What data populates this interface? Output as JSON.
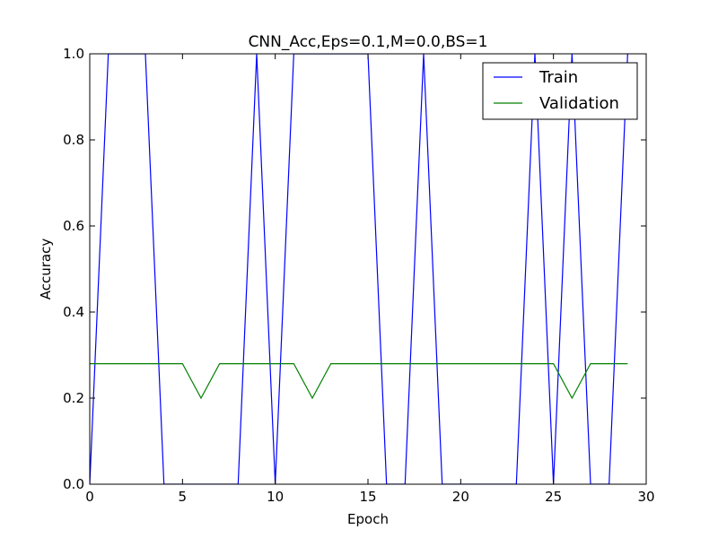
{
  "chart_data": {
    "type": "line",
    "title": "CNN_Acc,Eps=0.1,M=0.0,BS=1",
    "xlabel": "Epoch",
    "ylabel": "Accuracy",
    "xlim": [
      0,
      30
    ],
    "ylim": [
      0.0,
      1.0
    ],
    "xticks": [
      0,
      5,
      10,
      15,
      20,
      25,
      30
    ],
    "yticks": [
      0.0,
      0.2,
      0.4,
      0.6,
      0.8,
      1.0
    ],
    "xtick_labels": [
      "0",
      "5",
      "10",
      "15",
      "20",
      "25",
      "30"
    ],
    "ytick_labels": [
      "0.0",
      "0.2",
      "0.4",
      "0.6",
      "0.8",
      "1.0"
    ],
    "grid": false,
    "legend_position": "top-right",
    "x": [
      0,
      1,
      2,
      3,
      4,
      5,
      6,
      7,
      8,
      9,
      10,
      11,
      12,
      13,
      14,
      15,
      16,
      17,
      18,
      19,
      20,
      21,
      22,
      23,
      24,
      25,
      26,
      27,
      28,
      29
    ],
    "series": [
      {
        "name": "Train",
        "color": "#0000ff",
        "values": [
          0,
          1,
          1,
          1,
          0,
          0,
          0,
          0,
          0,
          1,
          0,
          1,
          1,
          1,
          1,
          1,
          0,
          0,
          1,
          0,
          0,
          0,
          0,
          0,
          1,
          0,
          1,
          0,
          0,
          1
        ]
      },
      {
        "name": "Validation",
        "color": "#008000",
        "values": [
          0.28,
          0.28,
          0.28,
          0.28,
          0.28,
          0.28,
          0.2,
          0.28,
          0.28,
          0.28,
          0.28,
          0.28,
          0.2,
          0.28,
          0.28,
          0.28,
          0.28,
          0.28,
          0.28,
          0.28,
          0.28,
          0.28,
          0.28,
          0.28,
          0.28,
          0.28,
          0.2,
          0.28,
          0.28,
          0.28
        ]
      }
    ]
  }
}
